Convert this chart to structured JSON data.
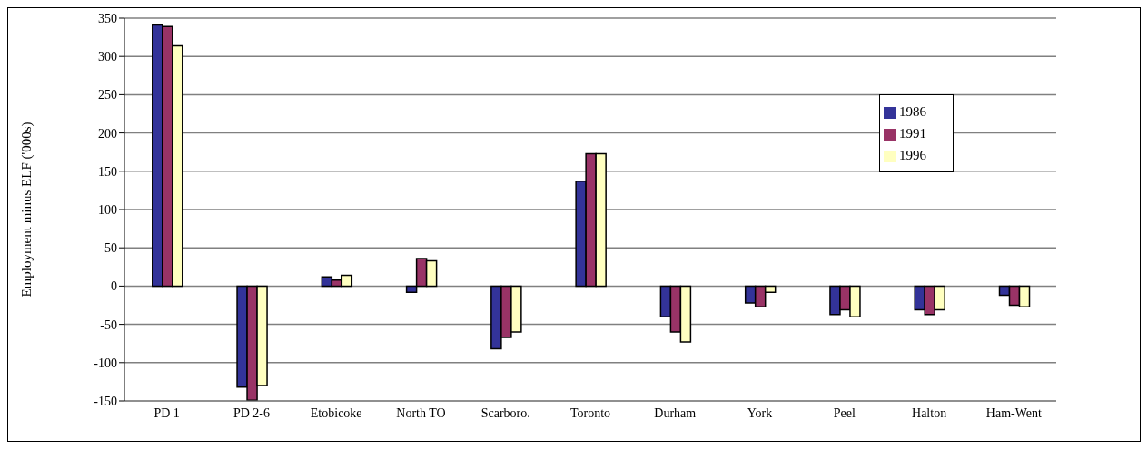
{
  "chart_data": {
    "type": "bar",
    "ylabel": "Employment minus ELF ('000s)",
    "categories": [
      "PD 1",
      "PD 2-6",
      "Etobicoke",
      "North TO",
      "Scarboro.",
      "Toronto",
      "Durham",
      "York",
      "Peel",
      "Halton",
      "Ham-Went"
    ],
    "series": [
      {
        "name": "1986",
        "color": "#333399",
        "values": [
          341,
          -132,
          12,
          -8,
          -82,
          137,
          -40,
          -22,
          -37,
          -31,
          -12
        ]
      },
      {
        "name": "1991",
        "color": "#993366",
        "values": [
          339,
          -149,
          8,
          36,
          -67,
          173,
          -60,
          -27,
          -31,
          -37,
          -25
        ]
      },
      {
        "name": "1996",
        "color": "#ffffc0",
        "values": [
          314,
          -130,
          14,
          33,
          -60,
          173,
          -73,
          -8,
          -40,
          -31,
          -27
        ]
      }
    ],
    "ylim": [
      -150,
      350
    ],
    "yticks": [
      -150,
      -100,
      -50,
      0,
      50,
      100,
      150,
      200,
      250,
      300,
      350
    ],
    "grid": "y",
    "legend": "top right"
  }
}
